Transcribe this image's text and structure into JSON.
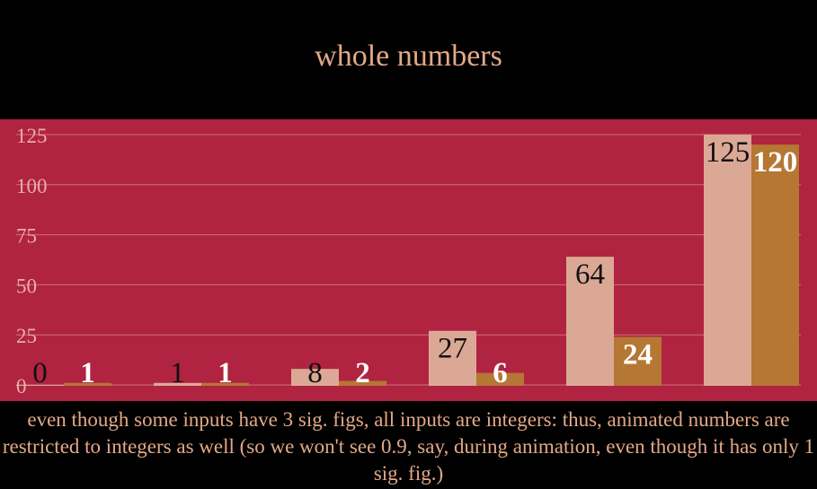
{
  "title": "whole numbers",
  "caption": "even though some inputs have 3 sig. figs, all inputs are integers: thus, animated numbers are restricted to integers as well (so we won't see 0.9, say, during animation, even though it has only 1 sig. fig.)",
  "colors": {
    "background": "#000000",
    "plot_background": "#B02341",
    "title": "#E3A987",
    "series_a": "#DCA896",
    "series_b": "#B57733",
    "grid": "#D98A8F",
    "tick_label": "#E8B0A8"
  },
  "chart_data": {
    "type": "bar",
    "title": "whole numbers",
    "grid": true,
    "ylim": [
      0,
      125
    ],
    "yticks": [
      0,
      25,
      50,
      75,
      100,
      125
    ],
    "series": [
      {
        "values": [
          0,
          1,
          8,
          27,
          64,
          125
        ]
      },
      {
        "values": [
          1,
          1,
          2,
          6,
          24,
          120
        ]
      }
    ]
  }
}
